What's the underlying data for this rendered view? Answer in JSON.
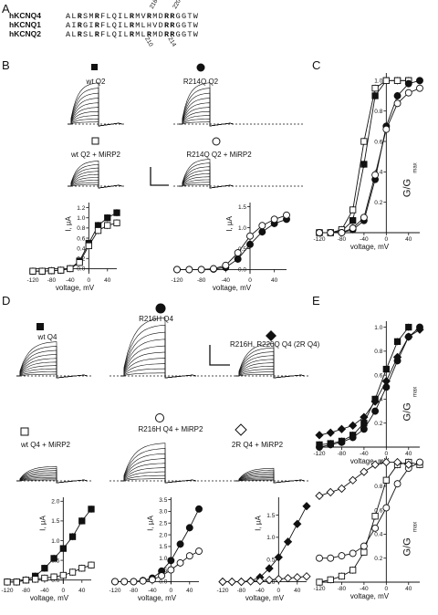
{
  "figure": {
    "panel_letters": [
      "A",
      "B",
      "C",
      "D",
      "E"
    ]
  },
  "alignment": {
    "rows": [
      {
        "name": "hKCNQ4",
        "sequence": "ALRSMRFLQILRMVRMDRRGGTW",
        "bold_positions": [
          2,
          5,
          11,
          14,
          17,
          18
        ]
      },
      {
        "name": "hKCNQ1",
        "sequence": "AIRGIRFLQILRMLHVDRRGGTW",
        "bold_positions": [
          2,
          5,
          11,
          17,
          18
        ]
      },
      {
        "name": "hKCNQ2",
        "sequence": "ALRSLRFLQILRMLRMDRRGGTW",
        "bold_positions": [
          2,
          5,
          11,
          14,
          17,
          18
        ]
      }
    ],
    "top_numbers": [
      "216",
      "220"
    ],
    "bottom_numbers": [
      "210",
      "214"
    ]
  },
  "trace_labels": {
    "B": {
      "wt": "wt Q2",
      "mut": "R214Q Q2",
      "wt_mirp": "wt Q2 + MiRP2",
      "mut_mirp": "R214Q Q2 + MiRP2"
    },
    "D": {
      "wt": "wt Q4",
      "r216h": "R216H Q4",
      "r2q": "R216H, R220Q Q4 (2R Q4)",
      "wt_mirp": "wt Q4 + MiRP2",
      "r216h_mirp": "R216H Q4 + MiRP2",
      "r2q_mirp": "2R Q4 + MiRP2"
    }
  },
  "axis_text": {
    "voltage": "voltage, mV",
    "current": "I, µA",
    "gg_main": "G/G",
    "gg_sub": "max"
  },
  "chart_data": [
    {
      "id": "B-left",
      "type": "scatter",
      "xlabel": "voltage, mV",
      "ylabel": "I, µA",
      "xlim": [
        -120,
        60
      ],
      "ylim": [
        -0.1,
        1.3
      ],
      "xticks": [
        -120,
        -80,
        -40,
        0,
        40
      ],
      "yticks": [
        0.0,
        0.2,
        0.4,
        0.6,
        0.8,
        1.0,
        1.2
      ],
      "series": [
        {
          "marker": "filled-square",
          "x": [
            -120,
            -100,
            -80,
            -60,
            -40,
            -20,
            0,
            20,
            40,
            60
          ],
          "y": [
            -0.05,
            -0.05,
            -0.04,
            -0.03,
            0.0,
            0.15,
            0.5,
            0.85,
            1.0,
            1.1
          ]
        },
        {
          "marker": "open-square",
          "x": [
            -120,
            -100,
            -80,
            -60,
            -40,
            -20,
            0,
            20,
            40,
            60
          ],
          "y": [
            -0.05,
            -0.05,
            -0.04,
            -0.03,
            0.0,
            0.12,
            0.45,
            0.75,
            0.85,
            0.9
          ]
        }
      ]
    },
    {
      "id": "B-right",
      "type": "scatter",
      "xlabel": "voltage, mV",
      "ylabel": "I, µA",
      "xlim": [
        -120,
        60
      ],
      "ylim": [
        -0.1,
        1.6
      ],
      "xticks": [
        -120,
        -80,
        -40,
        0,
        40
      ],
      "yticks": [
        0.0,
        0.5,
        1.0,
        1.5
      ],
      "series": [
        {
          "marker": "filled-circle",
          "x": [
            -120,
            -100,
            -80,
            -60,
            -40,
            -20,
            0,
            20,
            40,
            60
          ],
          "y": [
            0.0,
            0.0,
            0.0,
            0.01,
            0.05,
            0.25,
            0.6,
            0.9,
            1.1,
            1.2
          ]
        },
        {
          "marker": "open-circle",
          "x": [
            -120,
            -100,
            -80,
            -60,
            -40,
            -20,
            0,
            20,
            40,
            60
          ],
          "y": [
            0.0,
            0.0,
            0.0,
            0.02,
            0.1,
            0.4,
            0.8,
            1.05,
            1.2,
            1.3
          ]
        }
      ]
    },
    {
      "id": "C",
      "type": "scatter",
      "xlabel": "voltage, mV",
      "ylabel": "G/Gmax",
      "xlim": [
        -120,
        60
      ],
      "ylim": [
        0.0,
        1.05
      ],
      "xticks": [
        -120,
        -80,
        -40,
        0,
        40
      ],
      "yticks": [
        0.2,
        0.4,
        0.6,
        0.8,
        1.0
      ],
      "series": [
        {
          "marker": "filled-square",
          "x": [
            -120,
            -100,
            -80,
            -60,
            -40,
            -20,
            0,
            20,
            40
          ],
          "y": [
            0.0,
            0.0,
            0.01,
            0.08,
            0.45,
            0.9,
            1.0,
            1.0,
            1.0
          ]
        },
        {
          "marker": "open-square",
          "x": [
            -120,
            -100,
            -80,
            -60,
            -40,
            -20,
            0,
            20,
            40
          ],
          "y": [
            0.0,
            0.0,
            0.02,
            0.15,
            0.6,
            0.95,
            1.0,
            1.0,
            1.0
          ]
        },
        {
          "marker": "filled-circle",
          "x": [
            -120,
            -100,
            -80,
            -60,
            -40,
            -20,
            0,
            20,
            40,
            60
          ],
          "y": [
            0.0,
            0.0,
            0.0,
            0.02,
            0.08,
            0.35,
            0.7,
            0.9,
            0.98,
            1.0
          ]
        },
        {
          "marker": "open-circle",
          "x": [
            -120,
            -100,
            -80,
            -60,
            -40,
            -20,
            0,
            20,
            40,
            60
          ],
          "y": [
            0.0,
            0.0,
            0.0,
            0.03,
            0.1,
            0.38,
            0.68,
            0.85,
            0.92,
            0.95
          ]
        }
      ]
    },
    {
      "id": "D-left",
      "type": "scatter",
      "xlabel": "voltage, mV",
      "ylabel": "I, µA",
      "xlim": [
        -120,
        60
      ],
      "ylim": [
        -0.1,
        2.1
      ],
      "xticks": [
        -120,
        -80,
        -40,
        0,
        40
      ],
      "yticks": [
        0.0,
        0.5,
        1.0,
        1.5,
        2.0
      ],
      "series": [
        {
          "marker": "filled-square",
          "x": [
            -120,
            -100,
            -80,
            -60,
            -40,
            -20,
            0,
            20,
            40,
            60
          ],
          "y": [
            -0.05,
            -0.05,
            0.0,
            0.1,
            0.3,
            0.55,
            0.8,
            1.1,
            1.5,
            1.8
          ]
        },
        {
          "marker": "open-square",
          "x": [
            -120,
            -100,
            -80,
            -60,
            -40,
            -20,
            0,
            20,
            40,
            60
          ],
          "y": [
            -0.05,
            -0.05,
            0.0,
            0.02,
            0.05,
            0.08,
            0.12,
            0.2,
            0.3,
            0.38
          ]
        }
      ]
    },
    {
      "id": "D-middle",
      "type": "scatter",
      "xlabel": "voltage, mV",
      "ylabel": "I, µA",
      "xlim": [
        -120,
        60
      ],
      "ylim": [
        -0.1,
        3.6
      ],
      "xticks": [
        -120,
        -80,
        -40,
        0,
        40
      ],
      "yticks": [
        0.0,
        0.5,
        1.0,
        1.5,
        2.0,
        2.5,
        3.0,
        3.5
      ],
      "series": [
        {
          "marker": "filled-circle",
          "x": [
            -120,
            -100,
            -80,
            -60,
            -40,
            -20,
            0,
            20,
            40,
            60
          ],
          "y": [
            0.0,
            0.0,
            0.0,
            0.05,
            0.15,
            0.45,
            0.9,
            1.6,
            2.3,
            3.1
          ]
        },
        {
          "marker": "open-circle",
          "x": [
            -120,
            -100,
            -80,
            -60,
            -40,
            -20,
            0,
            20,
            40,
            60
          ],
          "y": [
            0.0,
            0.0,
            0.0,
            0.03,
            0.08,
            0.25,
            0.5,
            0.8,
            1.1,
            1.3
          ]
        }
      ]
    },
    {
      "id": "D-right",
      "type": "scatter",
      "xlabel": "voltage, mV",
      "ylabel": "I, µA",
      "xlim": [
        -120,
        60
      ],
      "ylim": [
        -0.05,
        1.9
      ],
      "xticks": [
        -120,
        -80,
        -40,
        0,
        40
      ],
      "yticks": [
        0.0,
        0.5,
        1.0,
        1.5
      ],
      "series": [
        {
          "marker": "filled-diamond",
          "x": [
            -120,
            -100,
            -80,
            -60,
            -40,
            -20,
            0,
            20,
            40,
            60
          ],
          "y": [
            0.0,
            0.0,
            0.0,
            0.02,
            0.1,
            0.3,
            0.55,
            0.9,
            1.3,
            1.7
          ]
        },
        {
          "marker": "open-diamond",
          "x": [
            -120,
            -100,
            -80,
            -60,
            -40,
            -20,
            0,
            20,
            40,
            60
          ],
          "y": [
            0.0,
            0.0,
            0.0,
            0.01,
            0.02,
            0.04,
            0.06,
            0.08,
            0.1,
            0.12
          ]
        }
      ]
    },
    {
      "id": "E-top",
      "type": "scatter",
      "xlabel": "voltage, mV",
      "ylabel": "G/Gmax",
      "xlim": [
        -120,
        60
      ],
      "ylim": [
        0.0,
        1.05
      ],
      "xticks": [
        -120,
        -80,
        -40,
        0,
        40
      ],
      "yticks": [
        0.2,
        0.4,
        0.6,
        0.8,
        1.0
      ],
      "series": [
        {
          "marker": "filled-square",
          "x": [
            -120,
            -100,
            -80,
            -60,
            -40,
            -20,
            0,
            20,
            40
          ],
          "y": [
            0.02,
            0.03,
            0.05,
            0.1,
            0.2,
            0.4,
            0.65,
            0.88,
            1.0
          ]
        },
        {
          "marker": "filled-circle",
          "x": [
            -120,
            -100,
            -80,
            -60,
            -40,
            -20,
            0,
            20,
            40,
            60
          ],
          "y": [
            0.0,
            0.02,
            0.04,
            0.08,
            0.15,
            0.3,
            0.5,
            0.72,
            0.92,
            1.0
          ]
        },
        {
          "marker": "filled-diamond",
          "x": [
            -120,
            -100,
            -80,
            -60,
            -40,
            -20,
            0,
            20,
            40,
            60
          ],
          "y": [
            0.1,
            0.12,
            0.15,
            0.18,
            0.25,
            0.38,
            0.55,
            0.75,
            0.92,
            0.98
          ]
        }
      ]
    },
    {
      "id": "E-bottom",
      "type": "scatter",
      "xlabel": "voltage, mV",
      "ylabel": "G/Gmax",
      "xlim": [
        -120,
        60
      ],
      "ylim": [
        0.0,
        1.05
      ],
      "xticks": [
        -120,
        -80,
        -40,
        0,
        40
      ],
      "yticks": [
        0.2,
        0.4,
        0.6,
        0.8,
        1.0
      ],
      "series": [
        {
          "marker": "open-square",
          "x": [
            -120,
            -100,
            -80,
            -60,
            -40,
            -20,
            0,
            20,
            40,
            60
          ],
          "y": [
            0.0,
            0.02,
            0.05,
            0.1,
            0.25,
            0.55,
            0.85,
            0.98,
            1.0,
            0.98
          ]
        },
        {
          "marker": "open-circle",
          "x": [
            -120,
            -100,
            -80,
            -60,
            -40,
            -20,
            0,
            20,
            40,
            60
          ],
          "y": [
            0.2,
            0.2,
            0.22,
            0.24,
            0.3,
            0.45,
            0.62,
            0.82,
            0.95,
            1.0
          ]
        },
        {
          "marker": "open-diamond",
          "x": [
            -120,
            -100,
            -80,
            -60,
            -40,
            -20,
            0,
            20,
            40
          ],
          "y": [
            0.72,
            0.75,
            0.78,
            0.85,
            0.92,
            0.98,
            1.0,
            1.0,
            0.98
          ]
        }
      ]
    }
  ]
}
